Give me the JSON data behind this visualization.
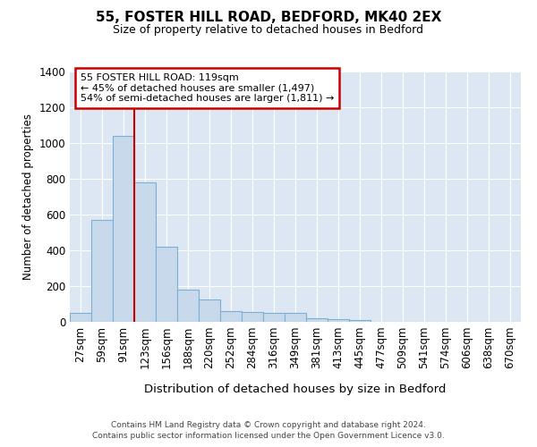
{
  "title_line1": "55, FOSTER HILL ROAD, BEDFORD, MK40 2EX",
  "title_line2": "Size of property relative to detached houses in Bedford",
  "xlabel": "Distribution of detached houses by size in Bedford",
  "ylabel": "Number of detached properties",
  "bar_color": "#c8d9ec",
  "bar_edge_color": "#7bafd4",
  "plot_bg_color": "#dce7f3",
  "grid_color": "#ffffff",
  "categories": [
    "27sqm",
    "59sqm",
    "91sqm",
    "123sqm",
    "156sqm",
    "188sqm",
    "220sqm",
    "252sqm",
    "284sqm",
    "316sqm",
    "349sqm",
    "381sqm",
    "413sqm",
    "445sqm",
    "477sqm",
    "509sqm",
    "541sqm",
    "574sqm",
    "606sqm",
    "638sqm",
    "670sqm"
  ],
  "values": [
    50,
    570,
    1040,
    780,
    420,
    180,
    125,
    62,
    55,
    48,
    50,
    22,
    15,
    8,
    0,
    0,
    0,
    0,
    0,
    0,
    0
  ],
  "ylim": [
    0,
    1400
  ],
  "yticks": [
    0,
    200,
    400,
    600,
    800,
    1000,
    1200,
    1400
  ],
  "vline_x": 2.5,
  "vline_color": "#cc0000",
  "annotation_title": "55 FOSTER HILL ROAD: 119sqm",
  "annotation_line2": "← 45% of detached houses are smaller (1,497)",
  "annotation_line3": "54% of semi-detached houses are larger (1,811) →",
  "footer_line1": "Contains HM Land Registry data © Crown copyright and database right 2024.",
  "footer_line2": "Contains public sector information licensed under the Open Government Licence v3.0."
}
